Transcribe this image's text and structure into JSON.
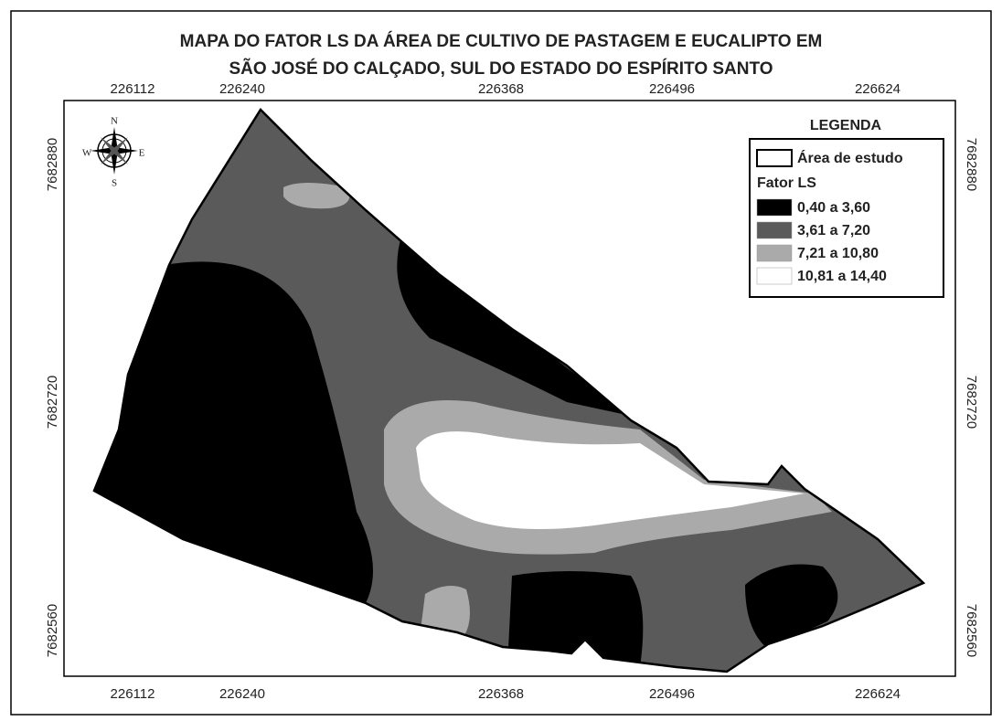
{
  "title": [
    "MAPA DO FATOR LS DA ÁREA DE CULTIVO DE PASTAGEM E EUCALIPTO EM",
    "SÃO JOSÉ DO CALÇADO, SUL DO ESTADO DO ESPÍRITO SANTO"
  ],
  "x_labels": [
    "226112",
    "226240",
    "226368",
    "226496",
    "226624"
  ],
  "y_labels": [
    "7682880",
    "7682720",
    "7682560"
  ],
  "compass": [
    "N",
    "E",
    "S",
    "W"
  ],
  "legend": {
    "title": "LEGENDA",
    "area": "Área de estudo",
    "subtitle": "Fator LS",
    "items": [
      {
        "label": "0,40 a 3,60",
        "color": "#000000"
      },
      {
        "label": "3,61 a 7,20",
        "color": "#5a5a5a"
      },
      {
        "label": "7,21 a 10,80",
        "color": "#aaaaaa"
      },
      {
        "label": "10,81 a 14,40",
        "color": "#ffffff"
      }
    ]
  }
}
